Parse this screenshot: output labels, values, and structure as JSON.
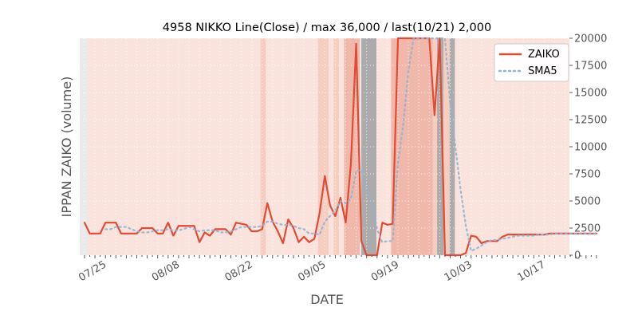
{
  "chart_data": {
    "type": "line",
    "title": "4958 NIKKO Line(Close) / max 36,000 / last(10/21) 2,000",
    "xlabel": "DATE",
    "ylabel": "IPPAN ZAIKO (volume)",
    "ylim": [
      0,
      20000
    ],
    "y_ticks": [
      0,
      2500,
      5000,
      7500,
      10000,
      12500,
      15000,
      17500,
      20000
    ],
    "y_tick_labels": [
      "0",
      "2500",
      "5000",
      "7500",
      "10000",
      "12500",
      "15000",
      "17500",
      "20000"
    ],
    "x_tick_labels": [
      "07/25",
      "08/08",
      "08/22",
      "09/05",
      "09/19",
      "10/03",
      "10/17"
    ],
    "x_tick_index": [
      4,
      18,
      32,
      46,
      60,
      74,
      88
    ],
    "legend_position": "top-right",
    "grid": true,
    "colors": {
      "ZAIKO": "#e24a33",
      "SMA5": "#8eb4d6",
      "band_light": "#fbe3dc",
      "band_mid": "#f5cbbf",
      "band_strong": "#f0b5a6",
      "band_gray": "#a8a8a8",
      "plot_bg": "#eaeaea"
    },
    "series": [
      {
        "name": "ZAIKO",
        "values": [
          3000,
          2000,
          2000,
          2000,
          3000,
          3000,
          3000,
          2000,
          2000,
          2000,
          2000,
          2500,
          2500,
          2500,
          2000,
          2000,
          3000,
          1800,
          2700,
          2700,
          2700,
          2700,
          1200,
          2100,
          1800,
          2400,
          2400,
          2400,
          1900,
          3000,
          2900,
          2800,
          2200,
          2200,
          2400,
          4800,
          3100,
          2200,
          1100,
          3300,
          2500,
          1200,
          1700,
          1200,
          1500,
          3900,
          7300,
          4600,
          3600,
          5300,
          3000,
          8500,
          19500,
          1300,
          0,
          0,
          0,
          3000,
          2800,
          2900,
          20000,
          20000,
          20000,
          20000,
          20000,
          20000,
          20000,
          12900,
          20000,
          0,
          0,
          0,
          0,
          200,
          1800,
          1700,
          1100,
          1300,
          1300,
          1300,
          1700,
          1900,
          1900,
          1900,
          1900,
          1900,
          1900,
          1900,
          1900,
          2000,
          2000,
          2000,
          2000,
          2000,
          2000,
          2000,
          2000,
          2000,
          2000
        ]
      },
      {
        "name": "SMA5",
        "values": [
          null,
          null,
          null,
          null,
          2400,
          2400,
          2600,
          2600,
          2600,
          2400,
          2200,
          2100,
          2100,
          2200,
          2300,
          2300,
          2400,
          2300,
          2300,
          2400,
          2600,
          2400,
          2200,
          2300,
          2300,
          2300,
          2100,
          2100,
          2200,
          2400,
          2600,
          2600,
          2600,
          2600,
          2700,
          3100,
          3100,
          2900,
          2800,
          2800,
          2700,
          2500,
          2400,
          2000,
          2000,
          1900,
          3100,
          3600,
          4100,
          5000,
          4800,
          5200,
          7800,
          7800,
          6000,
          4900,
          2400,
          1200,
          1300,
          1300,
          8500,
          12000,
          17000,
          20000,
          20000,
          20000,
          20000,
          20000,
          20000,
          20000,
          14000,
          10000,
          6000,
          2700,
          400,
          600,
          900,
          1200,
          1400,
          1400,
          1500,
          1600,
          1700,
          1800,
          1800,
          1800,
          1800,
          1900,
          1900,
          1900,
          2000,
          2000,
          2000,
          2000,
          2000,
          2000,
          2000,
          2000,
          2000
        ]
      }
    ]
  }
}
